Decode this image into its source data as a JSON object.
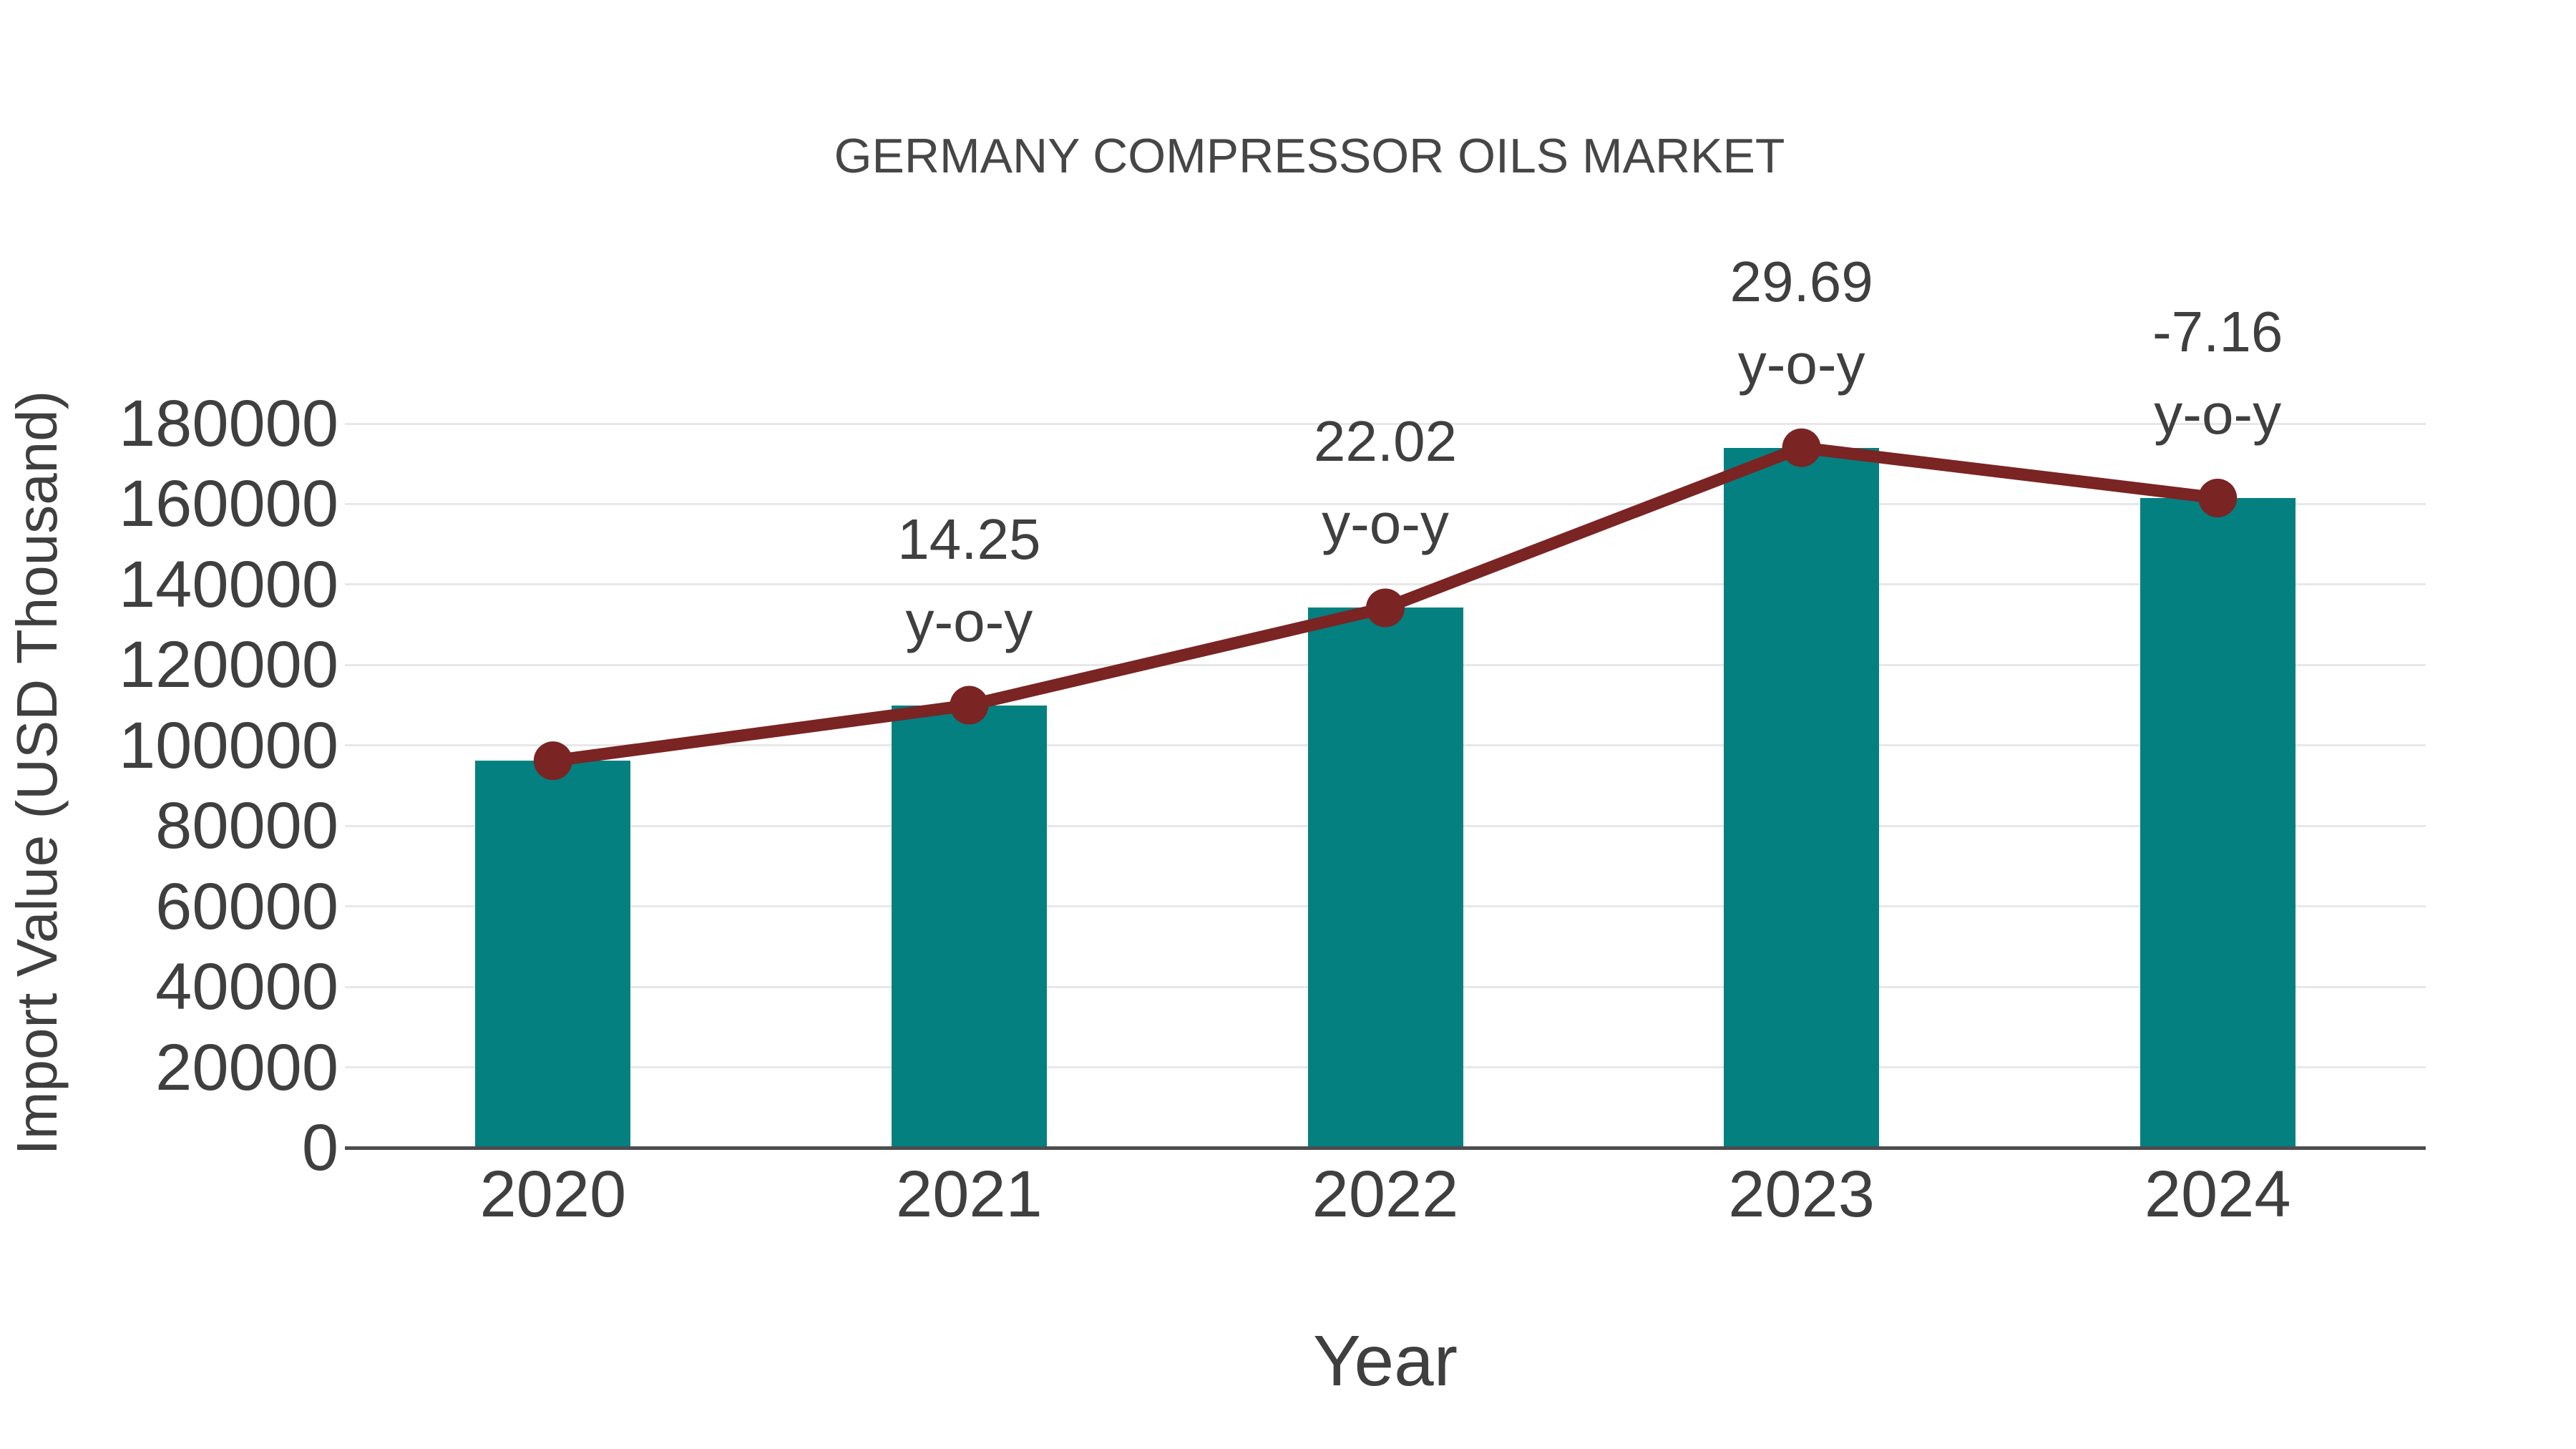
{
  "chart_data": {
    "type": "bar+line",
    "title": "GERMANY COMPRESSOR OILS MARKET",
    "xlabel": "Year",
    "ylabel": "Import Value (USD Thousand)",
    "categories": [
      "2020",
      "2021",
      "2022",
      "2023",
      "2024"
    ],
    "series": [
      {
        "name": "Import Value (USD Thousand)",
        "type": "bar",
        "values": [
          96200,
          110000,
          134200,
          174000,
          161500
        ]
      },
      {
        "name": "y-o-y growth (%)",
        "type": "line",
        "values": [
          null,
          14.25,
          22.02,
          29.69,
          -7.16
        ]
      }
    ],
    "annotations": [
      {
        "category": "2021",
        "value_line": "14.25",
        "suffix_line": "y-o-y"
      },
      {
        "category": "2022",
        "value_line": "22.02",
        "suffix_line": "y-o-y"
      },
      {
        "category": "2023",
        "value_line": "29.69",
        "suffix_line": "y-o-y"
      },
      {
        "category": "2024",
        "value_line": "-7.16",
        "suffix_line": "y-o-y"
      }
    ],
    "ylim": [
      0,
      180000
    ],
    "yticks": [
      0,
      20000,
      40000,
      60000,
      80000,
      100000,
      120000,
      140000,
      160000,
      180000
    ],
    "grid": true,
    "legend": false,
    "colors": {
      "bar": "#048080",
      "line": "#7A2423",
      "marker": "#7A2423",
      "text": "#3F3F3F",
      "title": "#464646",
      "grid": "#E8E8E8",
      "axis": "#4D4D4D",
      "background": "#FFFFFF"
    }
  }
}
